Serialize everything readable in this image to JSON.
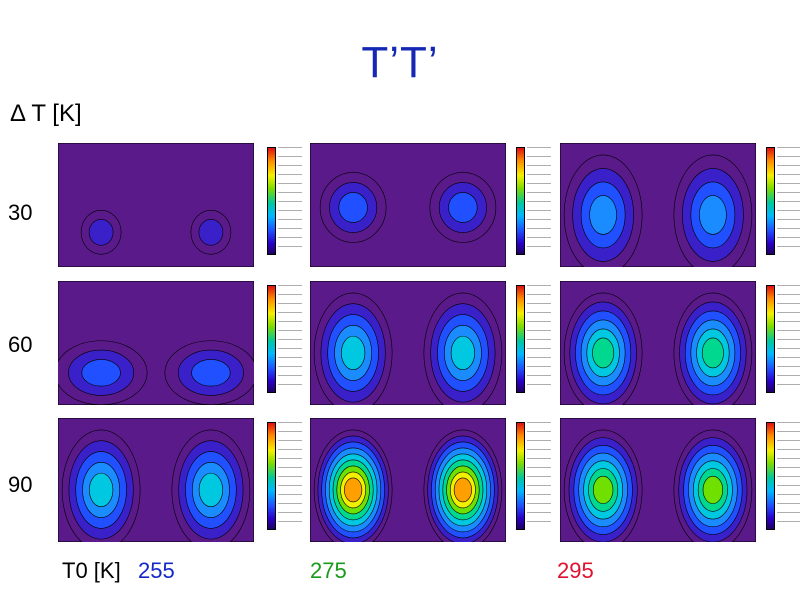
{
  "title": "T’T’",
  "row_axis_label": "Δ T [K]",
  "col_axis_label": "T0 [K]",
  "rows": [
    "30",
    "60",
    "90"
  ],
  "cols": [
    {
      "label": "255",
      "color": "#1428c8"
    },
    {
      "label": "275",
      "color": "#1a9a1a"
    },
    {
      "label": "295",
      "color": "#e01030"
    }
  ],
  "chart_data": {
    "type": "heatmap",
    "title": "T’T’",
    "xlabel": "T0 [K]",
    "ylabel": "Δ T [K]",
    "categories_x": [
      "255",
      "275",
      "295"
    ],
    "categories_y": [
      "30",
      "60",
      "90"
    ],
    "panels": [
      {
        "dT": "30",
        "T0": "255",
        "peak": 0.15,
        "shape": "weak"
      },
      {
        "dT": "30",
        "T0": "275",
        "peak": 0.35,
        "shape": "ring"
      },
      {
        "dT": "30",
        "T0": "295",
        "peak": 0.45,
        "shape": "tall"
      },
      {
        "dT": "60",
        "T0": "255",
        "peak": 0.3,
        "shape": "flat"
      },
      {
        "dT": "60",
        "T0": "275",
        "peak": 0.5,
        "shape": "tall"
      },
      {
        "dT": "60",
        "T0": "295",
        "peak": 0.65,
        "shape": "tall"
      },
      {
        "dT": "90",
        "T0": "255",
        "peak": 0.6,
        "shape": "tall"
      },
      {
        "dT": "90",
        "T0": "275",
        "peak": 1.0,
        "shape": "hot"
      },
      {
        "dT": "90",
        "T0": "295",
        "peak": 0.8,
        "shape": "tall"
      }
    ]
  }
}
